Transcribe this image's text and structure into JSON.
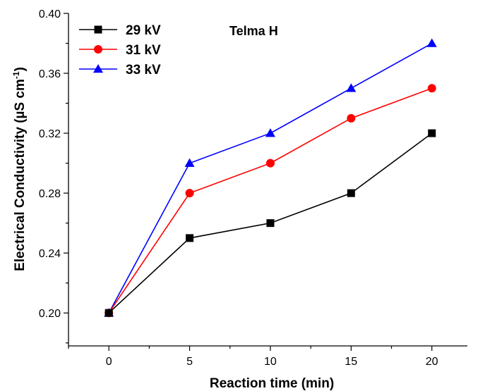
{
  "chart_data": {
    "type": "line",
    "x": [
      0,
      5,
      10,
      15,
      20
    ],
    "series": [
      {
        "name": "29 kV",
        "color": "#000000",
        "marker": "square",
        "values": [
          0.2,
          0.25,
          0.26,
          0.28,
          0.32
        ]
      },
      {
        "name": "31 kV",
        "color": "#ff0000",
        "marker": "circle",
        "values": [
          0.2,
          0.28,
          0.3,
          0.33,
          0.35
        ]
      },
      {
        "name": "33 kV",
        "color": "#0000ff",
        "marker": "triangle",
        "values": [
          0.2,
          0.3,
          0.32,
          0.35,
          0.38
        ]
      }
    ],
    "xlabel": "Reaction time (min)",
    "ylabel_main": "Electrical Conductivity (µS cm",
    "ylabel_sup": "-1",
    "ylabel_tail": ")",
    "annotation": "Telma H",
    "xlim": [
      -2.5,
      22.2
    ],
    "ylim": [
      0.178,
      0.4
    ],
    "xticks": [
      0,
      5,
      10,
      15,
      20
    ],
    "xtick_labels": [
      "0",
      "5",
      "10",
      "15",
      "20"
    ],
    "yticks": [
      0.2,
      0.24,
      0.28,
      0.32,
      0.36,
      0.4
    ],
    "ytick_labels": [
      "0.20",
      "0.24",
      "0.28",
      "0.32",
      "0.36",
      "0.40"
    ],
    "grid": false,
    "legend_position": "top-left"
  }
}
